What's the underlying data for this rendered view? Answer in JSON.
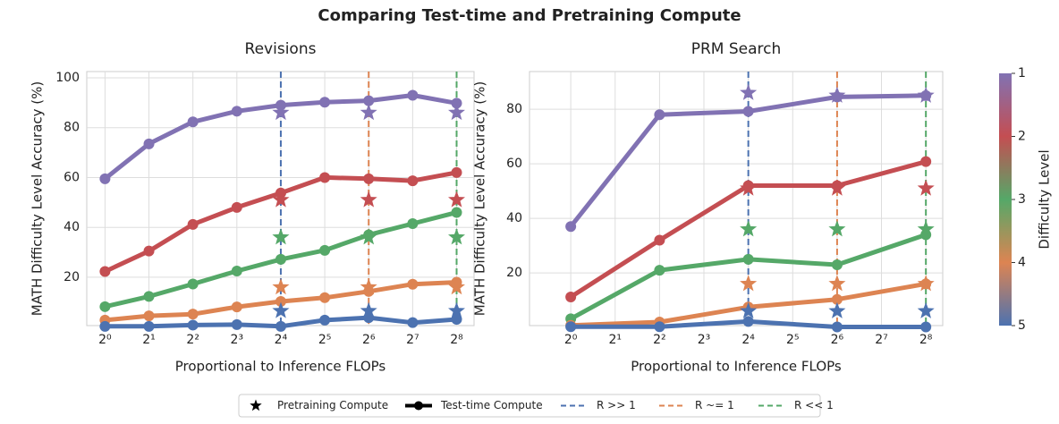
{
  "title": "Comparing Test-time and Pretraining Compute",
  "chart_data": [
    {
      "type": "line",
      "title": "Revisions",
      "xlabel": "Proportional to Inference FLOPs",
      "ylabel": "MATH Difficulty Level Accuracy (%)",
      "xscale": "log2",
      "grid": true,
      "x": [
        1,
        2,
        4,
        8,
        16,
        32,
        64,
        128,
        256
      ],
      "xlim": [
        0.75,
        337
      ],
      "ylim": [
        0.6,
        102.5
      ],
      "xticks": [
        {
          "value": 1,
          "label": "2⁰"
        },
        {
          "value": 2,
          "label": "2¹"
        },
        {
          "value": 4,
          "label": "2²"
        },
        {
          "value": 8,
          "label": "2³"
        },
        {
          "value": 16,
          "label": "2⁴"
        },
        {
          "value": 32,
          "label": "2⁵"
        },
        {
          "value": 64,
          "label": "2⁶"
        },
        {
          "value": 128,
          "label": "2⁷"
        },
        {
          "value": 256,
          "label": "2⁸"
        }
      ],
      "yticks": [
        20,
        40,
        60,
        80,
        100
      ],
      "star_x": [
        16,
        64,
        256
      ],
      "series": [
        {
          "color": "#8172b3",
          "values": [
            59.5,
            73.5,
            82.3,
            86.6,
            89,
            90.2,
            90.8,
            93,
            89.8
          ],
          "star_values": [
            86,
            86,
            86
          ]
        },
        {
          "color": "#c44e52",
          "values": [
            22.3,
            30.5,
            41.2,
            48,
            53.8,
            60,
            59.5,
            58.7,
            62
          ],
          "star_values": [
            51,
            51,
            51
          ]
        },
        {
          "color": "#55a868",
          "values": [
            8.2,
            12.3,
            17.3,
            22.5,
            27.2,
            30.8,
            37,
            41.5,
            46
          ],
          "star_values": [
            36,
            36,
            36
          ]
        },
        {
          "color": "#dd8452",
          "values": [
            2.8,
            4.5,
            5.2,
            8.1,
            10.3,
            11.8,
            14.3,
            17.2,
            18
          ],
          "star_values": [
            16,
            16,
            16
          ]
        },
        {
          "color": "#4c72b0",
          "values": [
            0.3,
            0.3,
            0.8,
            1,
            0.3,
            2.8,
            3.8,
            1.8,
            3.1
          ],
          "star_values": [
            6.5,
            6.5,
            6.5
          ]
        }
      ],
      "vlines": [
        {
          "x": 16,
          "color": "#4c72b0"
        },
        {
          "x": 64,
          "color": "#dd8452"
        },
        {
          "x": 256,
          "color": "#55a868"
        }
      ]
    },
    {
      "type": "line",
      "title": "PRM Search",
      "xlabel": "Proportional to Inference FLOPs",
      "ylabel": "MATH Difficulty Level Accuracy (%)",
      "xscale": "log2",
      "grid": true,
      "x": [
        1,
        4,
        16,
        64,
        256
      ],
      "xlim": [
        0.525,
        333
      ],
      "ylim": [
        0.7,
        93.8
      ],
      "xticks": [
        {
          "value": 1,
          "label": "2⁰"
        },
        {
          "value": 2,
          "label": "2¹"
        },
        {
          "value": 4,
          "label": "2²"
        },
        {
          "value": 8,
          "label": "2³"
        },
        {
          "value": 16,
          "label": "2⁴"
        },
        {
          "value": 32,
          "label": "2⁵"
        },
        {
          "value": 64,
          "label": "2⁶"
        },
        {
          "value": 128,
          "label": "2⁷"
        },
        {
          "value": 256,
          "label": "2⁸"
        }
      ],
      "yticks": [
        20,
        40,
        60,
        80
      ],
      "star_x": [
        16,
        64,
        256
      ],
      "series": [
        {
          "color": "#8172b3",
          "values": [
            37,
            78,
            79.2,
            84.5,
            85
          ],
          "star_values": [
            86,
            85,
            85
          ]
        },
        {
          "color": "#c44e52",
          "values": [
            11.2,
            32,
            52,
            52,
            60.8
          ],
          "star_values": [
            51,
            51,
            51
          ]
        },
        {
          "color": "#55a868",
          "values": [
            3.2,
            21,
            25,
            23,
            34
          ],
          "star_values": [
            36,
            36,
            36
          ]
        },
        {
          "color": "#dd8452",
          "values": [
            0.8,
            2,
            7.5,
            10.3,
            16
          ],
          "star_values": [
            16,
            16,
            16
          ]
        },
        {
          "color": "#4c72b0",
          "values": [
            0.3,
            0.3,
            2.2,
            0.2,
            0.2
          ],
          "star_values": [
            6,
            6,
            6
          ]
        }
      ],
      "vlines": [
        {
          "x": 16,
          "color": "#4c72b0"
        },
        {
          "x": 64,
          "color": "#dd8452"
        },
        {
          "x": 256,
          "color": "#55a868"
        }
      ]
    }
  ],
  "colorbar": {
    "label": "Difficulty Level",
    "lim": [
      1,
      5
    ],
    "ticks": [
      1,
      2,
      3,
      4,
      5
    ],
    "colors": [
      "#8172b3",
      "#c44e52",
      "#55a868",
      "#dd8452",
      "#4c72b0"
    ]
  },
  "legend": [
    {
      "label": "Pretraining Compute",
      "style": "star",
      "color": "#000000"
    },
    {
      "label": "Test-time Compute",
      "style": "line-marker",
      "color": "#000000"
    },
    {
      "label": "R >> 1",
      "style": "dashed",
      "color": "#4c72b0"
    },
    {
      "label": "R ~= 1",
      "style": "dashed",
      "color": "#dd8452"
    },
    {
      "label": "R << 1",
      "style": "dashed",
      "color": "#55a868"
    }
  ]
}
